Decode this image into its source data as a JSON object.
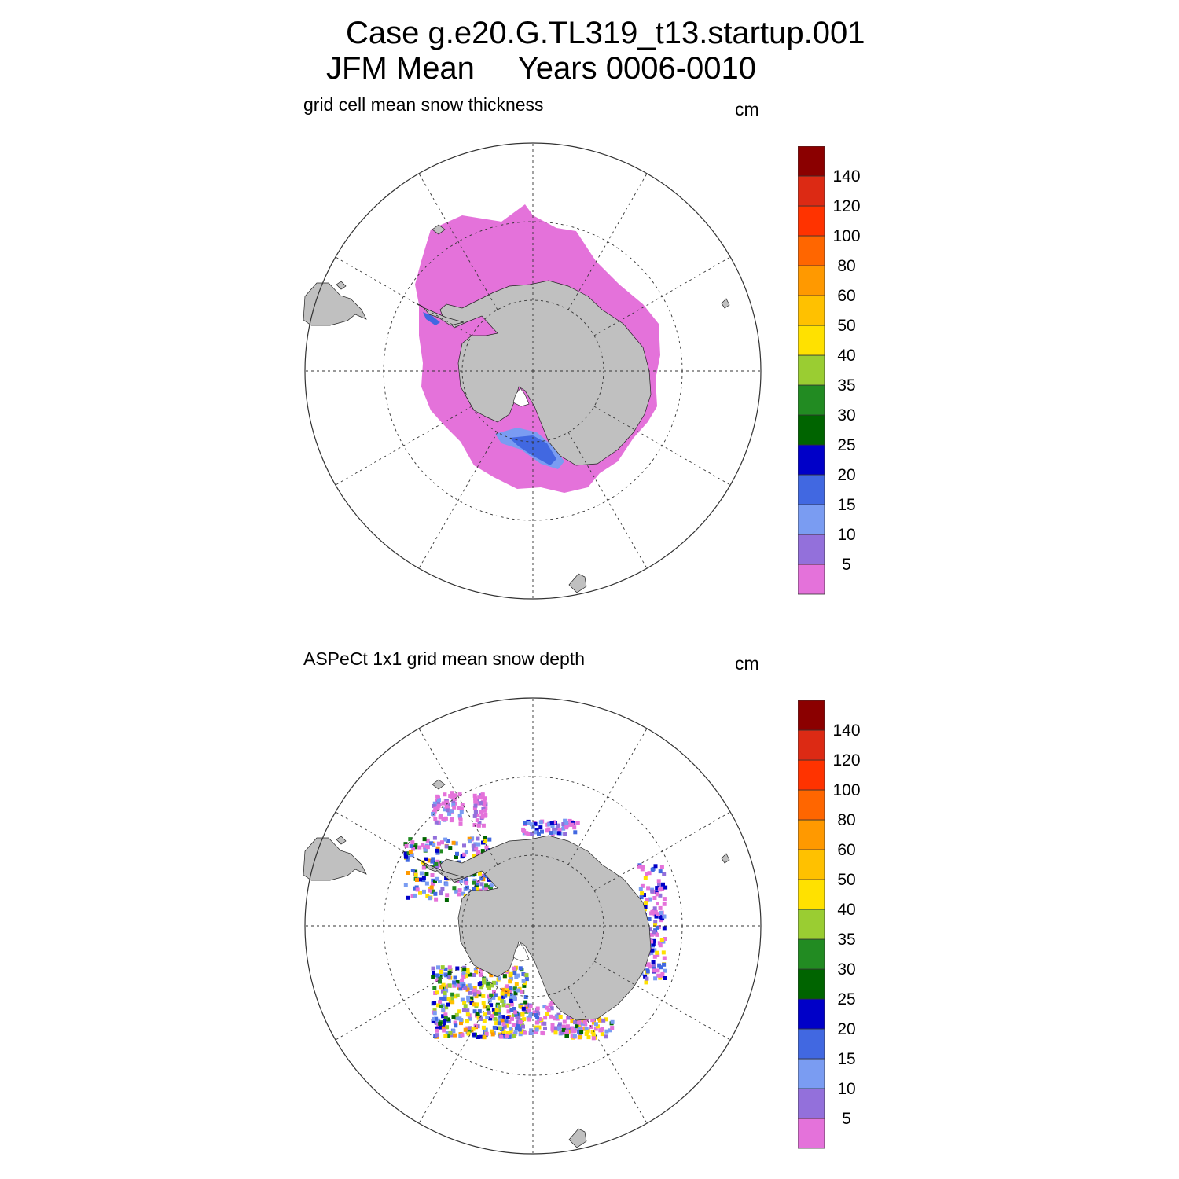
{
  "title": {
    "line1": "Case g.e20.G.TL319_t13.startup.001",
    "line2": "JFM Mean     Years 0006-0010"
  },
  "colorbar": {
    "colors": [
      "#e472da",
      "#9370db",
      "#7a9cf2",
      "#4168e1",
      "#0000c8",
      "#006400",
      "#228b22",
      "#9acd32",
      "#ffe100",
      "#ffc100",
      "#ff9900",
      "#ff6600",
      "#ff3300",
      "#dc2a14",
      "#8b0000"
    ],
    "labels": [
      "5",
      "10",
      "15",
      "20",
      "25",
      "30",
      "35",
      "40",
      "50",
      "60",
      "80",
      "100",
      "120",
      "140"
    ]
  },
  "colors": {
    "land": "#c0c0c0",
    "grid": "#333333"
  },
  "panels": [
    {
      "id": "model",
      "subtitle": "grid cell mean snow thickness",
      "units": "cm"
    },
    {
      "id": "obs",
      "subtitle": "ASPeCt 1x1 grid mean snow depth",
      "units": "cm"
    }
  ]
}
